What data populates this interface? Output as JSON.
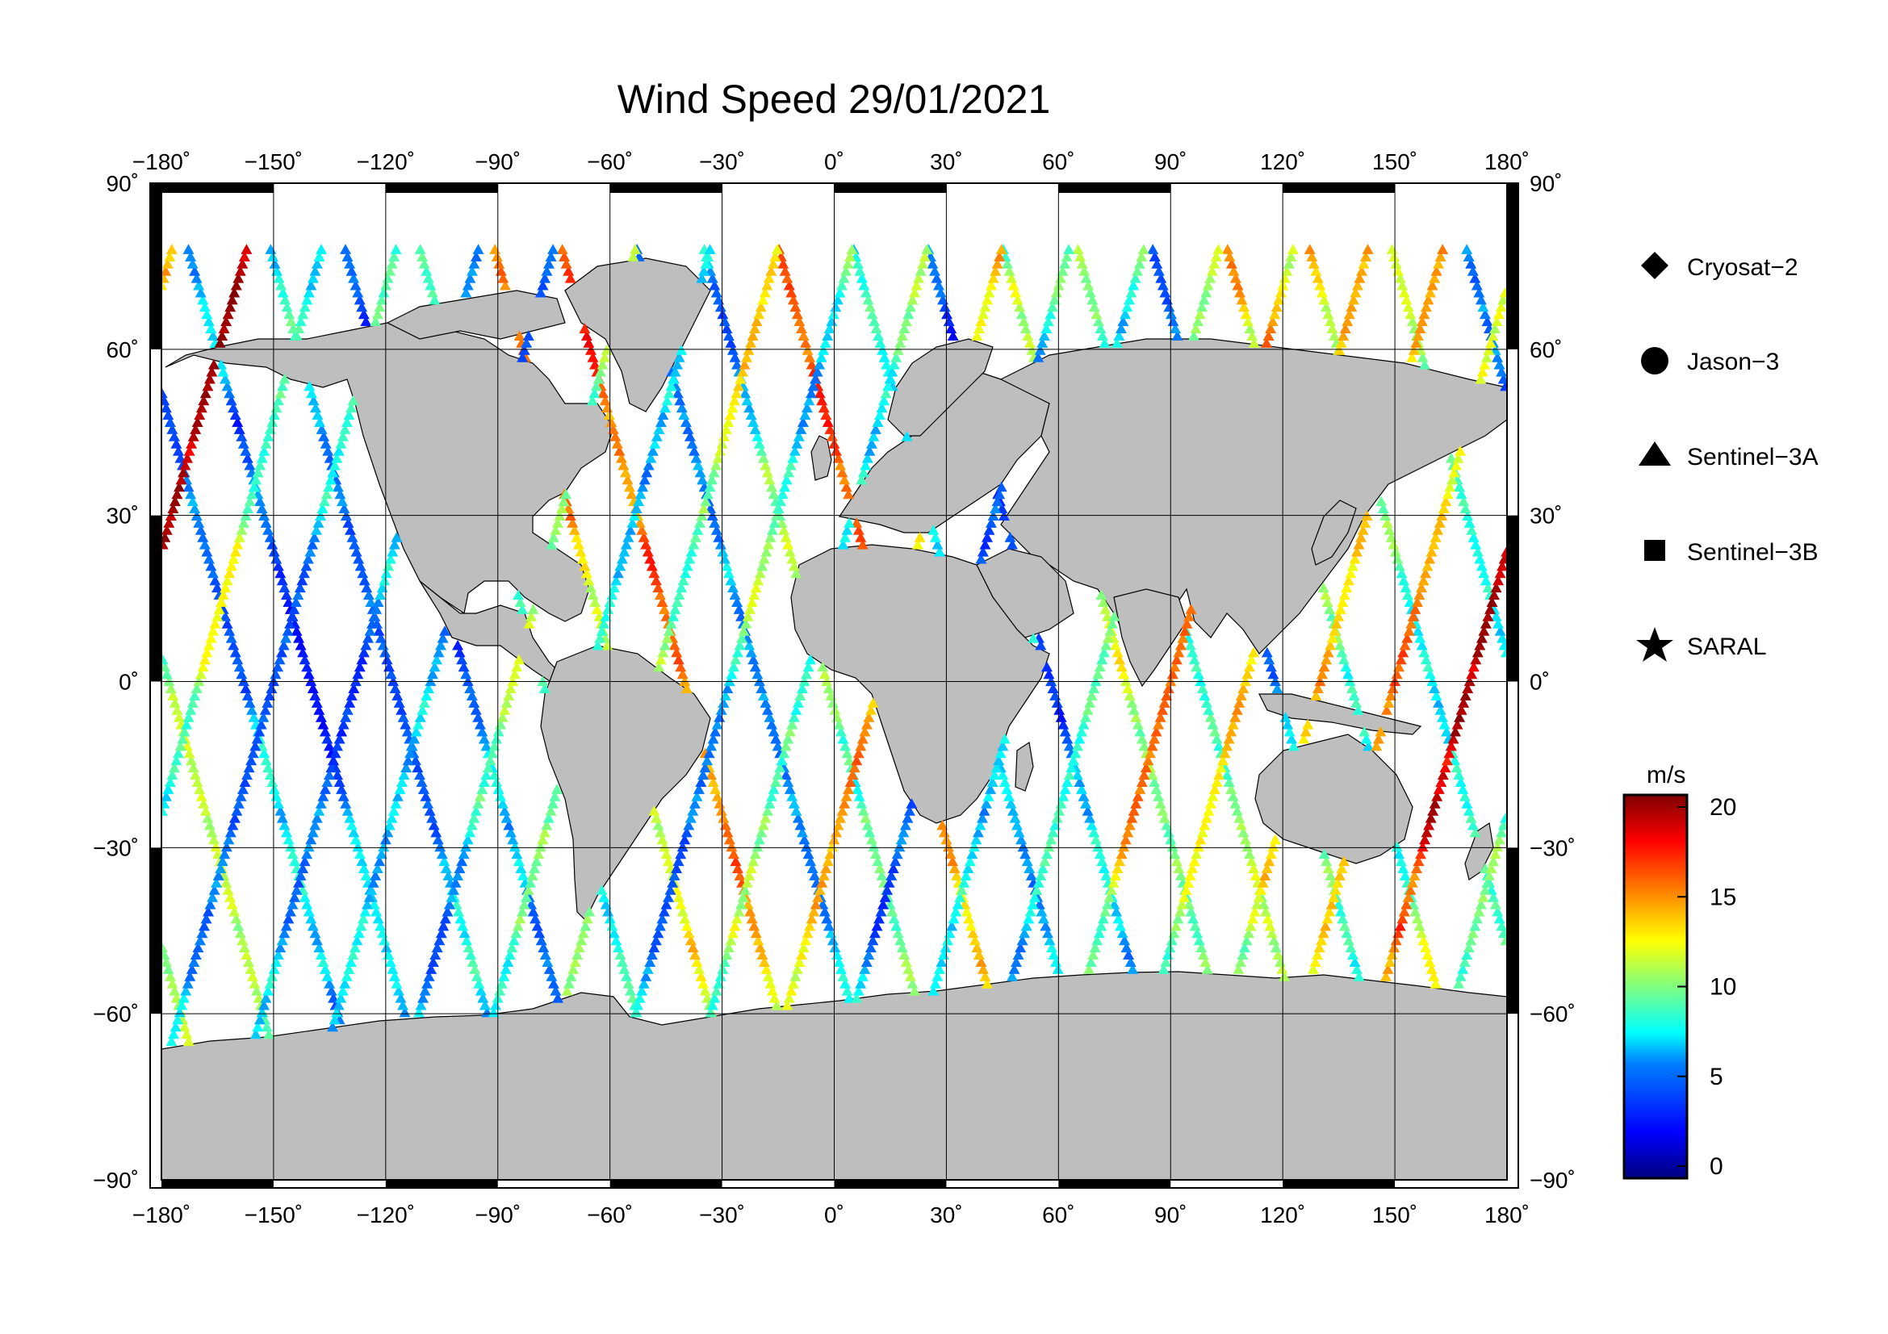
{
  "title": "Wind Speed 29/01/2021",
  "axes": {
    "lon_ticks": [
      "−180˚",
      "−150˚",
      "−120˚",
      "−90˚",
      "−60˚",
      "−30˚",
      "0˚",
      "30˚",
      "60˚",
      "90˚",
      "120˚",
      "150˚",
      "180˚"
    ],
    "lat_ticks_left": [
      "90˚",
      "60˚",
      "30˚",
      "0˚",
      "−30˚",
      "−60˚",
      "−90˚"
    ],
    "lat_ticks_right": [
      "90˚",
      "60˚",
      "30˚",
      "0˚",
      "−30˚",
      "−60˚",
      "−90˚"
    ],
    "lon_range": [
      -180,
      180
    ],
    "lat_range": [
      -90,
      90
    ],
    "grid": true
  },
  "legend": {
    "placement": "right",
    "items": [
      {
        "label": "Cryosat−2",
        "symbol": "diamond"
      },
      {
        "label": "Jason−3",
        "symbol": "circle"
      },
      {
        "label": "Sentinel−3A",
        "symbol": "triangle"
      },
      {
        "label": "Sentinel−3B",
        "symbol": "square"
      },
      {
        "label": "SARAL",
        "symbol": "star"
      }
    ]
  },
  "colorbar": {
    "unit": "m/s",
    "ticks": [
      "20",
      "15",
      "10",
      "5",
      "0"
    ],
    "range": [
      0,
      20
    ],
    "colors": [
      "#00007f",
      "#0000ff",
      "#0080ff",
      "#00ffff",
      "#80ff80",
      "#ffff00",
      "#ff8000",
      "#ff0000",
      "#7f0000"
    ]
  },
  "colors": {
    "land": "#bebebe",
    "ocean": "#ffffff",
    "frame": "#000000"
  },
  "chart_data": {
    "type": "scatter",
    "description_of_marks": "satellite altimeter ground-track wind speed samples",
    "tracks": [
      {
        "lon0": -178,
        "dir": -1,
        "min": 6,
        "max": 12
      },
      {
        "lon0": -158,
        "dir": -1,
        "min": 3,
        "max": 9
      },
      {
        "lon0": -140,
        "dir": -1,
        "min": 2,
        "max": 8
      },
      {
        "lon0": -118,
        "dir": -1,
        "min": 4,
        "max": 10
      },
      {
        "lon0": -98,
        "dir": -1,
        "min": 3,
        "max": 9
      },
      {
        "lon0": -78,
        "dir": -1,
        "min": 5,
        "max": 12
      },
      {
        "lon0": -58,
        "dir": -1,
        "min": 4,
        "max": 16
      },
      {
        "lon0": -40,
        "dir": -1,
        "min": 3,
        "max": 18
      },
      {
        "lon0": -20,
        "dir": -1,
        "min": 5,
        "max": 12
      },
      {
        "lon0": -2,
        "dir": -1,
        "min": 4,
        "max": 15
      },
      {
        "lon0": 18,
        "dir": -1,
        "min": 6,
        "max": 18
      },
      {
        "lon0": 38,
        "dir": -1,
        "min": 3,
        "max": 10
      },
      {
        "lon0": 58,
        "dir": -1,
        "min": 2,
        "max": 9
      },
      {
        "lon0": 78,
        "dir": -1,
        "min": 4,
        "max": 16
      },
      {
        "lon0": 98,
        "dir": -1,
        "min": 5,
        "max": 17
      },
      {
        "lon0": 118,
        "dir": -1,
        "min": 4,
        "max": 14
      },
      {
        "lon0": 138,
        "dir": -1,
        "min": 5,
        "max": 18
      },
      {
        "lon0": 160,
        "dir": -1,
        "min": 6,
        "max": 19
      },
      {
        "lon0": -170,
        "dir": 1,
        "min": 6,
        "max": 13
      },
      {
        "lon0": -150,
        "dir": 1,
        "min": 4,
        "max": 10
      },
      {
        "lon0": -128,
        "dir": 1,
        "min": 3,
        "max": 9
      },
      {
        "lon0": -108,
        "dir": 1,
        "min": 3,
        "max": 10
      },
      {
        "lon0": -86,
        "dir": 1,
        "min": 4,
        "max": 12
      },
      {
        "lon0": -66,
        "dir": 1,
        "min": 5,
        "max": 11
      },
      {
        "lon0": -48,
        "dir": 1,
        "min": 5,
        "max": 18
      },
      {
        "lon0": -28,
        "dir": 1,
        "min": 4,
        "max": 13
      },
      {
        "lon0": -8,
        "dir": 1,
        "min": 3,
        "max": 14
      },
      {
        "lon0": 12,
        "dir": 1,
        "min": 6,
        "max": 17
      },
      {
        "lon0": 30,
        "dir": 1,
        "min": 3,
        "max": 12
      },
      {
        "lon0": 50,
        "dir": 1,
        "min": 2,
        "max": 11
      },
      {
        "lon0": 70,
        "dir": 1,
        "min": 3,
        "max": 12
      },
      {
        "lon0": 90,
        "dir": 1,
        "min": 4,
        "max": 16
      },
      {
        "lon0": 110,
        "dir": 1,
        "min": 4,
        "max": 15
      },
      {
        "lon0": 130,
        "dir": 1,
        "min": 5,
        "max": 16
      },
      {
        "lon0": 150,
        "dir": 1,
        "min": 5,
        "max": 18
      },
      {
        "lon0": 170,
        "dir": 1,
        "min": 7,
        "max": 20
      }
    ]
  }
}
